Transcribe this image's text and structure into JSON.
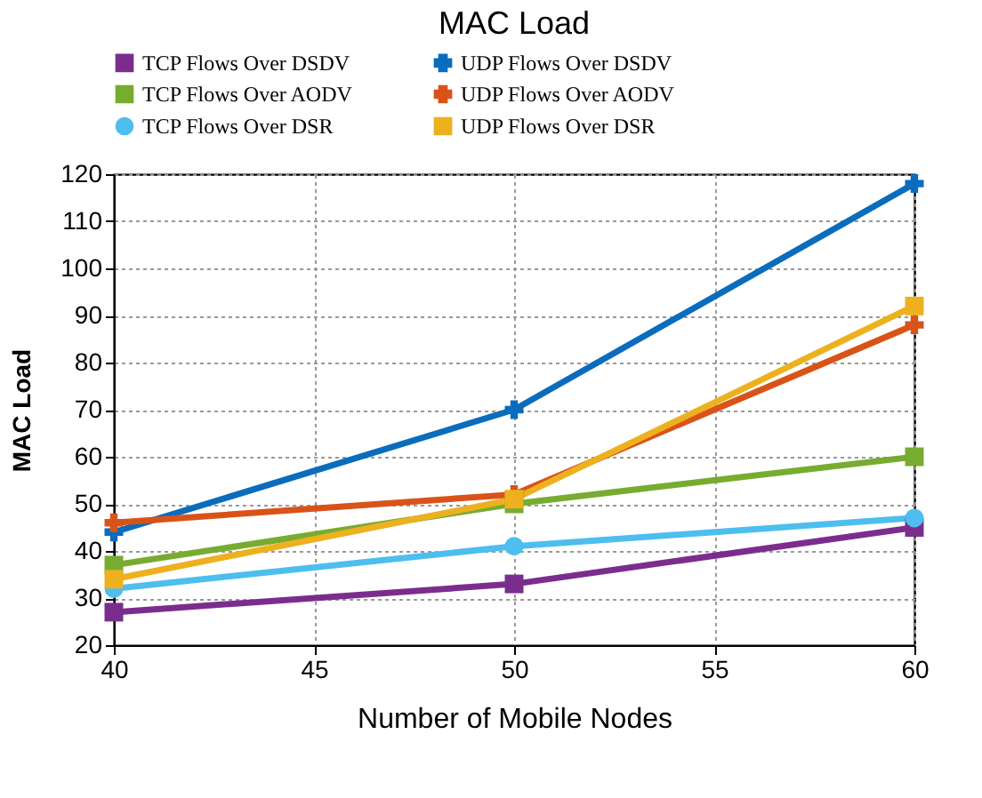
{
  "chart_data": {
    "type": "line",
    "title": "MAC Load",
    "xlabel": "Number of Mobile Nodes",
    "ylabel": "MAC Load",
    "x": [
      40,
      50,
      60
    ],
    "xlim": [
      40,
      60
    ],
    "xticks": [
      40,
      45,
      50,
      55,
      60
    ],
    "ylim": [
      20,
      120
    ],
    "yticks": [
      20,
      30,
      40,
      50,
      60,
      70,
      80,
      90,
      100,
      110,
      120
    ],
    "grid": true,
    "legend": "top",
    "line_style": "solid",
    "series": [
      {
        "name": "TCP Flows Over DSDV",
        "color": "#7b2d8e",
        "marker": "square",
        "values": [
          27,
          33,
          45
        ]
      },
      {
        "name": "UDP Flows Over DSDV",
        "color": "#0a6cbd",
        "marker": "cross",
        "values": [
          44,
          70,
          118
        ]
      },
      {
        "name": "TCP Flows Over AODV",
        "color": "#77ac30",
        "marker": "square",
        "values": [
          37,
          50,
          60
        ]
      },
      {
        "name": "UDP Flows Over AODV",
        "color": "#d95319",
        "marker": "cross",
        "values": [
          46,
          52,
          88
        ]
      },
      {
        "name": "TCP Flows Over DSR",
        "color": "#4dbeee",
        "marker": "circle",
        "values": [
          32,
          41,
          47
        ]
      },
      {
        "name": "UDP Flows Over DSR",
        "color": "#edb120",
        "marker": "square",
        "values": [
          34,
          51,
          92
        ]
      }
    ]
  }
}
